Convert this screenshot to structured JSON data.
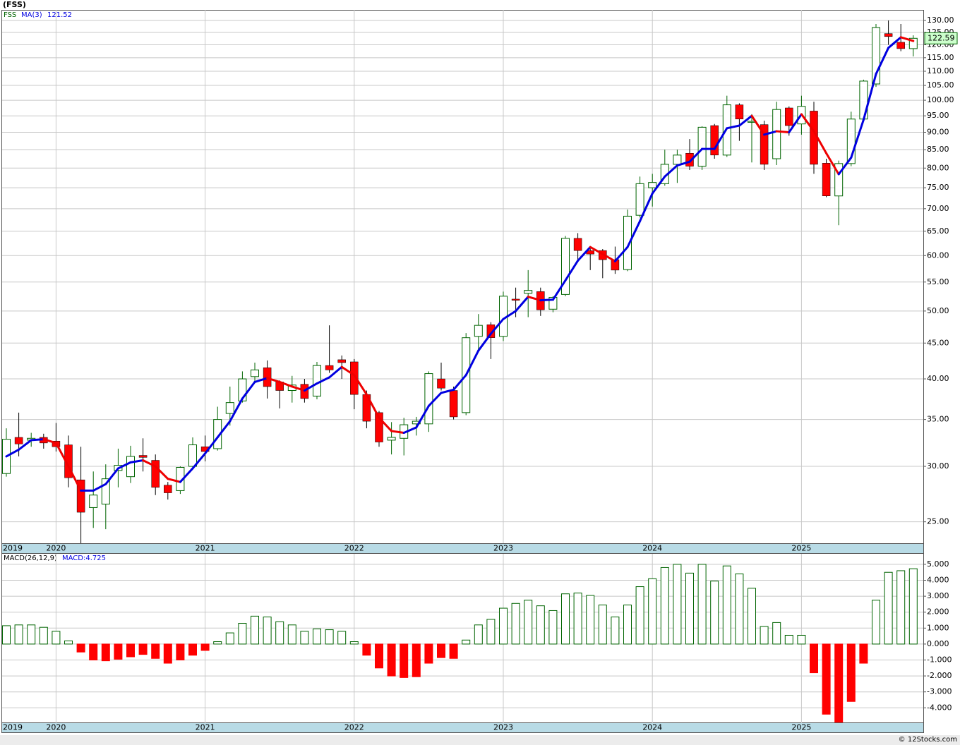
{
  "chart_data": [
    {
      "type": "candlestick",
      "title": "(FSS)",
      "name": "FSS",
      "source": "© 12Stocks.com",
      "categories": [
        "2019",
        null,
        null,
        null,
        "2020",
        null,
        null,
        null,
        null,
        null,
        null,
        null,
        null,
        null,
        null,
        null,
        "2021",
        null,
        null,
        null,
        null,
        null,
        null,
        null,
        null,
        null,
        null,
        null,
        "2022",
        null,
        null,
        null,
        null,
        null,
        null,
        null,
        null,
        null,
        null,
        null,
        "2023",
        null,
        null,
        null,
        null,
        null,
        null,
        null,
        null,
        null,
        null,
        null,
        "2024",
        null,
        null,
        null,
        null,
        null,
        null,
        null,
        null,
        null,
        null,
        null,
        "2025",
        null,
        null,
        null,
        null,
        null,
        null,
        null,
        null,
        null
      ],
      "open": [
        29.3,
        33,
        32.7,
        33,
        32.6,
        32.2,
        28.7,
        26.2,
        26.5,
        29.6,
        29.0,
        31.1,
        30.6,
        28.2,
        27.7,
        30.0,
        32.0,
        31.8,
        35.7,
        37.2,
        40.3,
        41.5,
        39.6,
        38.5,
        39.3,
        37.8,
        41.8,
        42.6,
        42.3,
        38.0,
        35.8,
        32.7,
        32.9,
        34.5,
        34.5,
        40.0,
        38.5,
        35.8,
        46.0,
        47.8,
        46.0,
        52.0,
        53.0,
        53.3,
        50.3,
        52.8,
        63.5,
        61.0,
        61.0,
        59.2,
        57.3,
        68.5,
        75.0,
        76.0,
        81.0,
        84.0,
        80.5,
        92.0,
        83.5,
        98.5,
        93.0,
        92.3,
        82.5,
        97.5,
        92.5,
        96.5,
        81.3,
        73.0,
        81.2,
        94.0,
        105.5,
        124.5,
        121.0,
        118.5
      ],
      "high": [
        34,
        35.8,
        33.5,
        33.4,
        34.6,
        33.2,
        32.0,
        29.5,
        30.2,
        31.8,
        32.1,
        32.9,
        31.2,
        28.5,
        30.0,
        33.0,
        33.2,
        36.5,
        39.0,
        41.0,
        42.2,
        42.5,
        39.8,
        40.4,
        40.0,
        42.3,
        47.7,
        43.2,
        42.7,
        38.5,
        36.0,
        34.7,
        35.2,
        35.3,
        41.0,
        42.2,
        39.0,
        46.5,
        49.5,
        48.2,
        53.3,
        54.0,
        57.2,
        54.0,
        52.5,
        64.0,
        64.6,
        61.5,
        61.3,
        61.8,
        69.8,
        77.8,
        78.5,
        85.0,
        85.0,
        88.0,
        91.8,
        92.5,
        101.5,
        99.0,
        95.5,
        93.5,
        99.5,
        98.0,
        101.5,
        99.5,
        82.5,
        82.0,
        96.3,
        107.0,
        128.5,
        130.0,
        128.5,
        123.8
      ],
      "low": [
        29,
        31,
        32,
        31.8,
        31.5,
        28,
        23.3,
        24.5,
        24.4,
        28,
        28.4,
        29.5,
        27.3,
        26.9,
        27.4,
        29.8,
        30.5,
        31.6,
        34.3,
        37.0,
        39.5,
        37.5,
        36.3,
        37.0,
        37.0,
        37.4,
        40.8,
        40.0,
        36.2,
        34.0,
        32.0,
        31.2,
        31.1,
        33.2,
        33.6,
        38.5,
        35.0,
        35.5,
        44.0,
        42.7,
        45.3,
        49.0,
        49.0,
        49.2,
        49.8,
        52.5,
        59.0,
        57.2,
        55.7,
        56.5,
        57.0,
        68.0,
        70.5,
        75.5,
        76.2,
        79.5,
        79.5,
        82.5,
        83.0,
        87.5,
        81.5,
        79.5,
        80.8,
        89.0,
        89.3,
        78.5,
        72.7,
        66.3,
        80.5,
        93.5,
        104.5,
        120.0,
        117.5,
        115.5
      ],
      "close": [
        32.8,
        32.3,
        32.9,
        32.4,
        32.0,
        28.9,
        25.8,
        27.3,
        28.8,
        30.1,
        31.0,
        30.9,
        28.0,
        27.5,
        29.9,
        32.2,
        31.5,
        35.0,
        37.0,
        40.0,
        41.2,
        39.0,
        38.5,
        39.2,
        37.5,
        41.8,
        41.2,
        42.2,
        38.0,
        34.8,
        32.5,
        33.0,
        34.4,
        34.8,
        40.7,
        38.8,
        35.3,
        45.8,
        47.7,
        45.8,
        52.5,
        51.8,
        53.5,
        50.2,
        52.3,
        63.5,
        61.0,
        60.3,
        59.2,
        57.2,
        68.3,
        76.0,
        76.3,
        81.0,
        83.5,
        80.5,
        91.5,
        83.5,
        98.5,
        94.0,
        93.3,
        81.0,
        97.0,
        92.0,
        98.0,
        81.0,
        73.0,
        81.2,
        94.0,
        106.5,
        127.0,
        123.3,
        118.5,
        122.59
      ],
      "up_color": "#006400",
      "down_color": "#ff0000",
      "ma": {
        "name": "MA(3)",
        "up_color": "#0000e0",
        "down_color": "#ee0000",
        "values": [
          31.0,
          31.7,
          32.7,
          32.8,
          32.4,
          30.0,
          27.7,
          27.7,
          28.3,
          29.8,
          30.4,
          30.6,
          30.0,
          28.8,
          28.5,
          29.8,
          31.3,
          33.0,
          34.8,
          37.5,
          39.6,
          40.1,
          39.6,
          39.0,
          38.5,
          39.4,
          40.2,
          41.6,
          40.5,
          38.0,
          35.2,
          33.7,
          33.5,
          34.1,
          36.6,
          38.2,
          38.6,
          40.5,
          43.9,
          46.4,
          48.7,
          50.0,
          52.4,
          51.8,
          51.9,
          55.3,
          59.0,
          61.7,
          60.3,
          58.9,
          61.7,
          67.2,
          73.6,
          77.8,
          80.7,
          81.7,
          85.2,
          85.2,
          91.2,
          92.0,
          95.0,
          89.3,
          90.3,
          90.0,
          95.5,
          90.3,
          84.0,
          78.4,
          82.8,
          93.8,
          109.0,
          118.8,
          123.0,
          121.52
        ]
      },
      "log_scale": true,
      "grid": true,
      "ylim": [
        23.3,
        134.6
      ],
      "yticks": [
        {
          "value": 25,
          "label": "25.00"
        },
        {
          "value": 30,
          "label": "30.00"
        },
        {
          "value": 35,
          "label": "35.00"
        },
        {
          "value": 40,
          "label": "40.00"
        },
        {
          "value": 45,
          "label": "45.00"
        },
        {
          "value": 50,
          "label": "50.00"
        },
        {
          "value": 55,
          "label": "55.00"
        },
        {
          "value": 60,
          "label": "60.00"
        },
        {
          "value": 65,
          "label": "65.00"
        },
        {
          "value": 70,
          "label": "70.00"
        },
        {
          "value": 75,
          "label": "75.00"
        },
        {
          "value": 80,
          "label": "80.00"
        },
        {
          "value": 85,
          "label": "85.00"
        },
        {
          "value": 90,
          "label": "90.00"
        },
        {
          "value": 95,
          "label": "95.00"
        },
        {
          "value": 100,
          "label": "100.00"
        },
        {
          "value": 105,
          "label": "105.00"
        },
        {
          "value": 110,
          "label": "110.00"
        },
        {
          "value": 115,
          "label": "115.00"
        },
        {
          "value": 120,
          "label": "120.00"
        },
        {
          "value": 125,
          "label": "125.00"
        },
        {
          "value": 130,
          "label": "130.00"
        }
      ]
    },
    {
      "type": "bar",
      "name": "MACD(26,12,9)",
      "legend_label": "MACD:4.725",
      "pos_color": "#006400",
      "neg_color": "#ff0000",
      "values": [
        1.15,
        1.2,
        1.2,
        1.05,
        0.8,
        0.2,
        -0.5,
        -1.0,
        -1.05,
        -0.95,
        -0.8,
        -0.65,
        -0.9,
        -1.2,
        -1.0,
        -0.7,
        -0.4,
        0.15,
        0.7,
        1.3,
        1.75,
        1.7,
        1.4,
        1.2,
        0.8,
        0.95,
        0.9,
        0.8,
        0.15,
        -0.7,
        -1.5,
        -2.0,
        -2.1,
        -2.05,
        -1.2,
        -0.85,
        -0.9,
        0.25,
        1.2,
        1.55,
        2.25,
        2.55,
        2.75,
        2.4,
        2.1,
        3.15,
        3.2,
        3.05,
        2.45,
        1.7,
        2.45,
        3.6,
        4.1,
        4.8,
        5.0,
        4.45,
        5.0,
        3.95,
        4.9,
        4.4,
        3.5,
        1.1,
        1.35,
        0.55,
        0.55,
        -1.8,
        -4.4,
        -4.9,
        -3.6,
        -1.2,
        2.75,
        4.5,
        4.6,
        4.725
      ],
      "ylim": [
        -4.96,
        5.66
      ],
      "yticks": [
        {
          "value": 5,
          "label": "5.000"
        },
        {
          "value": 4,
          "label": "4.000"
        },
        {
          "value": 3,
          "label": "3.000"
        },
        {
          "value": 2,
          "label": "2.000"
        },
        {
          "value": 1,
          "label": "1.000"
        },
        {
          "value": 0,
          "label": "0.000"
        },
        {
          "value": -1,
          "label": "-1.000"
        },
        {
          "value": -2,
          "label": "-2.000"
        },
        {
          "value": -3,
          "label": "-3.000"
        },
        {
          "value": -4,
          "label": "-4.000"
        }
      ]
    }
  ]
}
